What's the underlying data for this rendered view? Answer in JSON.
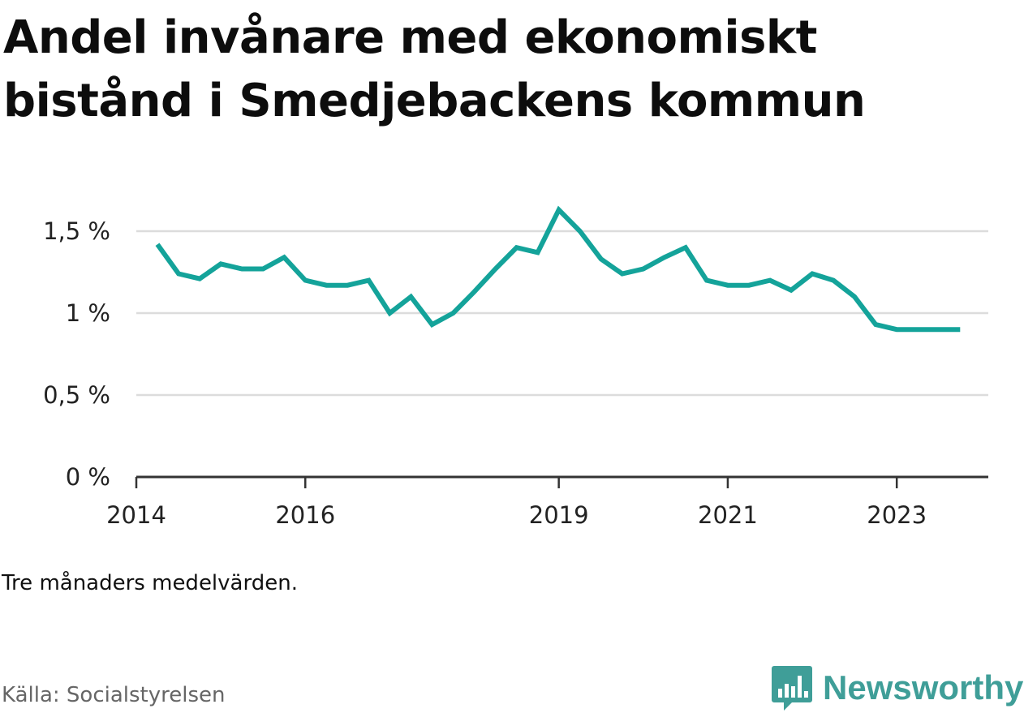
{
  "title": "Andel invånare med ekonomiskt bistånd i Smedjebackens kommun",
  "note": "Tre månaders medelvärden.",
  "source": "Källa: Socialstyrelsen",
  "brand": {
    "name": "Newsworthy",
    "icon": "bar-chart-speech-bubble-icon",
    "color": "#3f9e98"
  },
  "colors": {
    "line": "#14a39a",
    "grid": "#dcdcdc",
    "axis": "#333333"
  },
  "chart_data": {
    "type": "line",
    "title": "Andel invånare med ekonomiskt bistånd i Smedjebackens kommun",
    "xlabel": "",
    "ylabel": "",
    "ylim": [
      0,
      1.5
    ],
    "yticks": [
      0,
      0.5,
      1,
      1.5
    ],
    "ytick_labels": [
      "0 %",
      "0,5 %",
      "1 %",
      "1,5 %"
    ],
    "xlim": [
      "2014-01",
      "2024-02"
    ],
    "xticks": [
      "2014-01",
      "2016-01",
      "2019-01",
      "2021-01",
      "2023-01"
    ],
    "xtick_labels": [
      "2014",
      "2016",
      "2019",
      "2021",
      "2023"
    ],
    "grid": true,
    "series": [
      {
        "values": [
          [
            "2014-04",
            1.42
          ],
          [
            "2014-07",
            1.24
          ],
          [
            "2014-10",
            1.21
          ],
          [
            "2015-01",
            1.3
          ],
          [
            "2015-04",
            1.27
          ],
          [
            "2015-07",
            1.27
          ],
          [
            "2015-10",
            1.34
          ],
          [
            "2016-01",
            1.2
          ],
          [
            "2016-04",
            1.17
          ],
          [
            "2016-07",
            1.17
          ],
          [
            "2016-10",
            1.2
          ],
          [
            "2017-01",
            1.0
          ],
          [
            "2017-04",
            1.1
          ],
          [
            "2017-07",
            0.93
          ],
          [
            "2017-10",
            1.0
          ],
          [
            "2018-01",
            1.13
          ],
          [
            "2018-04",
            1.27
          ],
          [
            "2018-07",
            1.4
          ],
          [
            "2018-10",
            1.37
          ],
          [
            "2019-01",
            1.63
          ],
          [
            "2019-04",
            1.5
          ],
          [
            "2019-07",
            1.33
          ],
          [
            "2019-10",
            1.24
          ],
          [
            "2020-01",
            1.27
          ],
          [
            "2020-04",
            1.34
          ],
          [
            "2020-07",
            1.4
          ],
          [
            "2020-10",
            1.2
          ],
          [
            "2021-01",
            1.17
          ],
          [
            "2021-04",
            1.17
          ],
          [
            "2021-07",
            1.2
          ],
          [
            "2021-10",
            1.14
          ],
          [
            "2022-01",
            1.24
          ],
          [
            "2022-04",
            1.2
          ],
          [
            "2022-07",
            1.1
          ],
          [
            "2022-10",
            0.93
          ],
          [
            "2023-01",
            0.9
          ],
          [
            "2023-04",
            0.9
          ],
          [
            "2023-07",
            0.9
          ],
          [
            "2023-10",
            0.9
          ]
        ]
      }
    ]
  }
}
